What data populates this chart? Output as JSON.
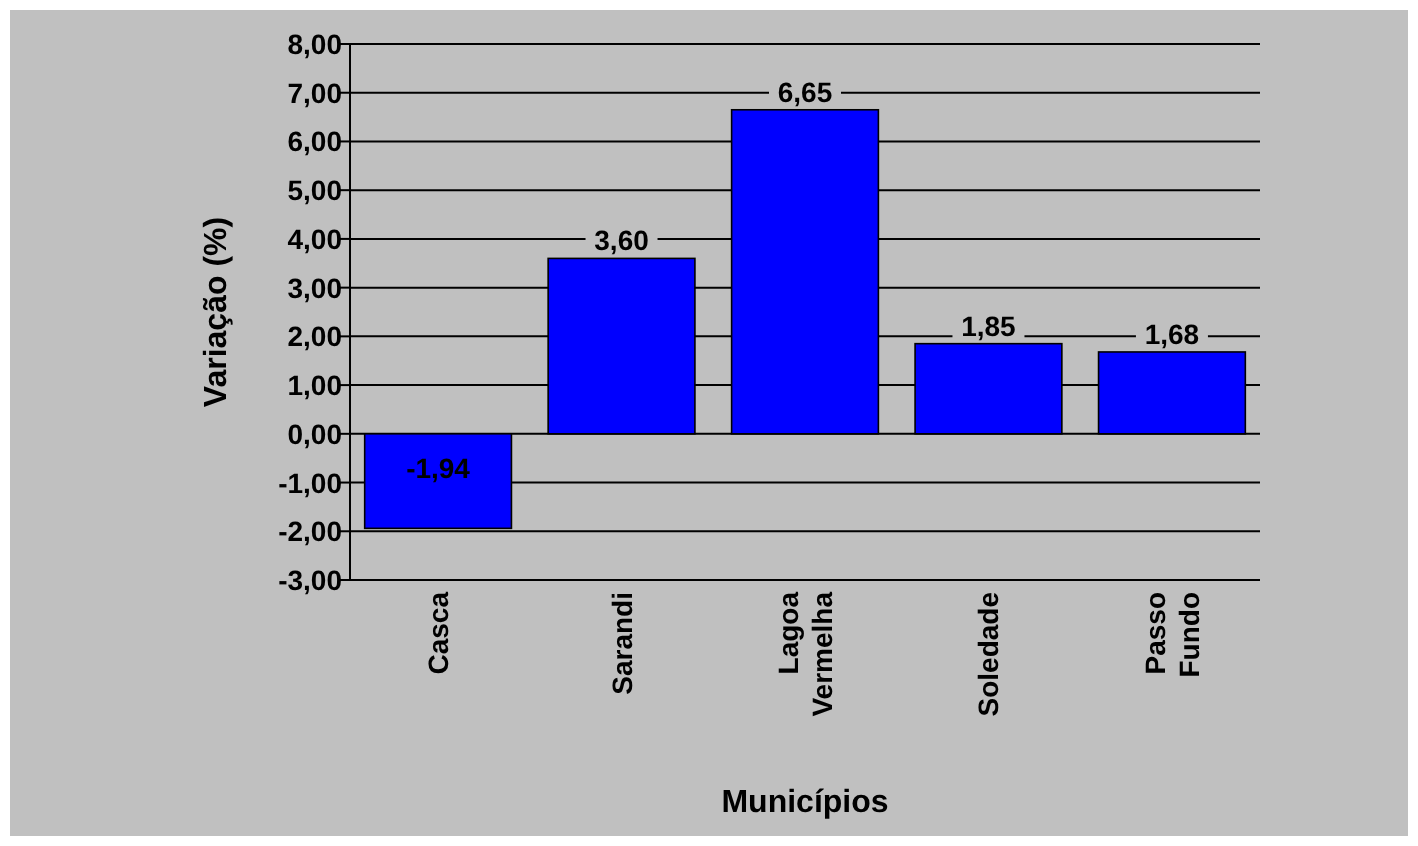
{
  "chart_data": {
    "type": "bar",
    "xlabel": "Municípios",
    "ylabel": "Variação (%)",
    "categories": [
      "Casca",
      "Sarandi",
      "Lagoa Vermelha",
      "Soledade",
      "Passo Fundo"
    ],
    "values": [
      -1.94,
      3.6,
      6.65,
      1.85,
      1.68
    ],
    "value_labels": [
      "-1,94",
      "3,60",
      "6,65",
      "1,85",
      "1,68"
    ],
    "color": "#0000ff",
    "ylim": [
      -3,
      8
    ],
    "yticks": [
      {
        "value": -3,
        "label": "-3,00"
      },
      {
        "value": -2,
        "label": "-2,00"
      },
      {
        "value": -1,
        "label": "-1,00"
      },
      {
        "value": 0,
        "label": "0,00"
      },
      {
        "value": 1,
        "label": "1,00"
      },
      {
        "value": 2,
        "label": "2,00"
      },
      {
        "value": 3,
        "label": "3,00"
      },
      {
        "value": 4,
        "label": "4,00"
      },
      {
        "value": 5,
        "label": "5,00"
      },
      {
        "value": 6,
        "label": "6,00"
      },
      {
        "value": 7,
        "label": "7,00"
      },
      {
        "value": 8,
        "label": "8,00"
      }
    ],
    "grid": "y"
  }
}
